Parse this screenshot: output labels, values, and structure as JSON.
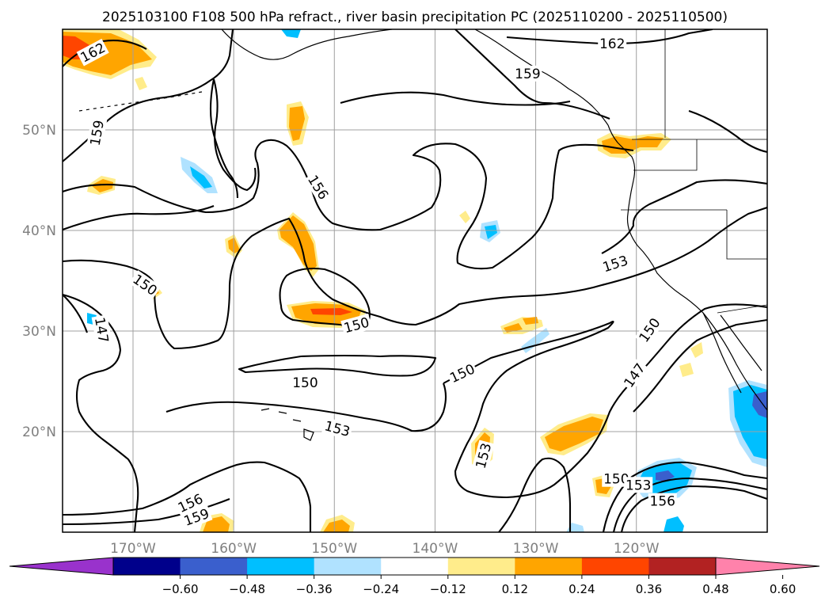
{
  "chart_data": {
    "type": "contour-map",
    "title": "2025103100 F108 500 hPa refract., river basin precipitation PC (2025110200 - 2025110500)",
    "region": "North Pacific / West coast of North America",
    "lon_range": [
      -177,
      -107
    ],
    "lat_range": [
      10,
      60
    ],
    "x_ticks": [
      {
        "lon": -170,
        "label": "170°W"
      },
      {
        "lon": -160,
        "label": "160°W"
      },
      {
        "lon": -150,
        "label": "150°W"
      },
      {
        "lon": -140,
        "label": "140°W"
      },
      {
        "lon": -130,
        "label": "130°W"
      },
      {
        "lon": -120,
        "label": "120°W"
      }
    ],
    "y_ticks": [
      {
        "lat": 20,
        "label": "20°N"
      },
      {
        "lat": 30,
        "label": "30°N"
      },
      {
        "lat": 40,
        "label": "40°N"
      },
      {
        "lat": 50,
        "label": "50°N"
      }
    ],
    "contour_labels": [
      {
        "text": "162",
        "lon": -174,
        "lat": 57.7,
        "rot": -28
      },
      {
        "text": "162",
        "lon": -122.4,
        "lat": 58.6,
        "rot": 0
      },
      {
        "text": "159",
        "lon": -130.8,
        "lat": 55.6,
        "rot": 0
      },
      {
        "text": "159",
        "lon": -173.6,
        "lat": 49.7,
        "rot": -80
      },
      {
        "text": "156",
        "lon": -151.6,
        "lat": 44.3,
        "rot": 58
      },
      {
        "text": "153",
        "lon": -122.1,
        "lat": 36.7,
        "rot": -18
      },
      {
        "text": "150",
        "lon": -168.8,
        "lat": 34.6,
        "rot": 35
      },
      {
        "text": "147",
        "lon": -173.1,
        "lat": 30.1,
        "rot": 80
      },
      {
        "text": "150",
        "lon": -147.8,
        "lat": 30.6,
        "rot": -15
      },
      {
        "text": "150",
        "lon": -152.9,
        "lat": 24.9,
        "rot": 0
      },
      {
        "text": "150",
        "lon": -137.3,
        "lat": 25.8,
        "rot": -25
      },
      {
        "text": "150",
        "lon": -118.7,
        "lat": 30.1,
        "rot": -55
      },
      {
        "text": "147",
        "lon": -120.2,
        "lat": 25.6,
        "rot": -55
      },
      {
        "text": "153",
        "lon": -149.7,
        "lat": 20.3,
        "rot": 15
      },
      {
        "text": "153",
        "lon": -135.2,
        "lat": 17.6,
        "rot": -75
      },
      {
        "text": "156",
        "lon": -164.3,
        "lat": 12.9,
        "rot": -25
      },
      {
        "text": "159",
        "lon": -163.7,
        "lat": 11.5,
        "rot": -20
      },
      {
        "text": "150",
        "lon": -122.0,
        "lat": 15.3,
        "rot": 0
      },
      {
        "text": "153",
        "lon": -119.8,
        "lat": 14.7,
        "rot": 0
      },
      {
        "text": "156",
        "lon": -117.4,
        "lat": 13.1,
        "rot": 0
      }
    ],
    "colorbar": {
      "ticks": [
        "−0.60",
        "−0.48",
        "−0.36",
        "−0.24",
        "−0.12",
        "0.12",
        "0.24",
        "0.36",
        "0.48",
        "0.60"
      ],
      "colors": [
        "#9932cc",
        "#00008b",
        "#3a5fcd",
        "#00bfff",
        "#b0e2ff",
        "#ffffff",
        "#ffec8b",
        "#ffa500",
        "#ff4500",
        "#b22222",
        "#ff82ab"
      ],
      "extend": "both"
    }
  }
}
